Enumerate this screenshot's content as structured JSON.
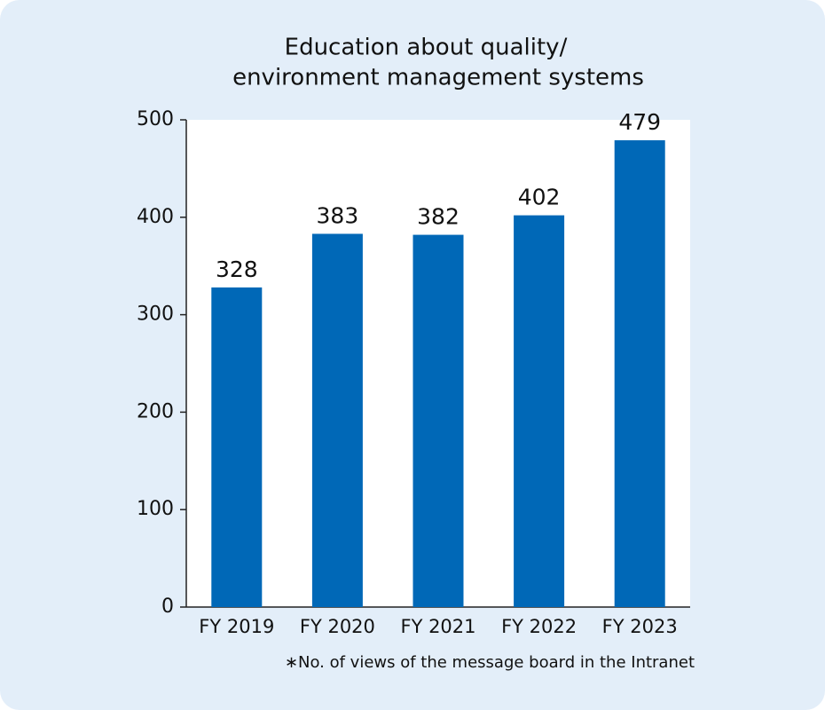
{
  "chart_data": {
    "type": "bar",
    "title": [
      "Education about quality/",
      "environment management systems"
    ],
    "categories": [
      "FY 2019",
      "FY 2020",
      "FY 2021",
      "FY 2022",
      "FY 2023"
    ],
    "values": [
      328,
      383,
      382,
      402,
      479
    ],
    "color": "#0068b7",
    "ylim": [
      0,
      500
    ],
    "yticks": [
      0,
      100,
      200,
      300,
      400,
      500
    ],
    "grid": false,
    "footnote": "∗No. of views of the message board in the Intranet"
  }
}
